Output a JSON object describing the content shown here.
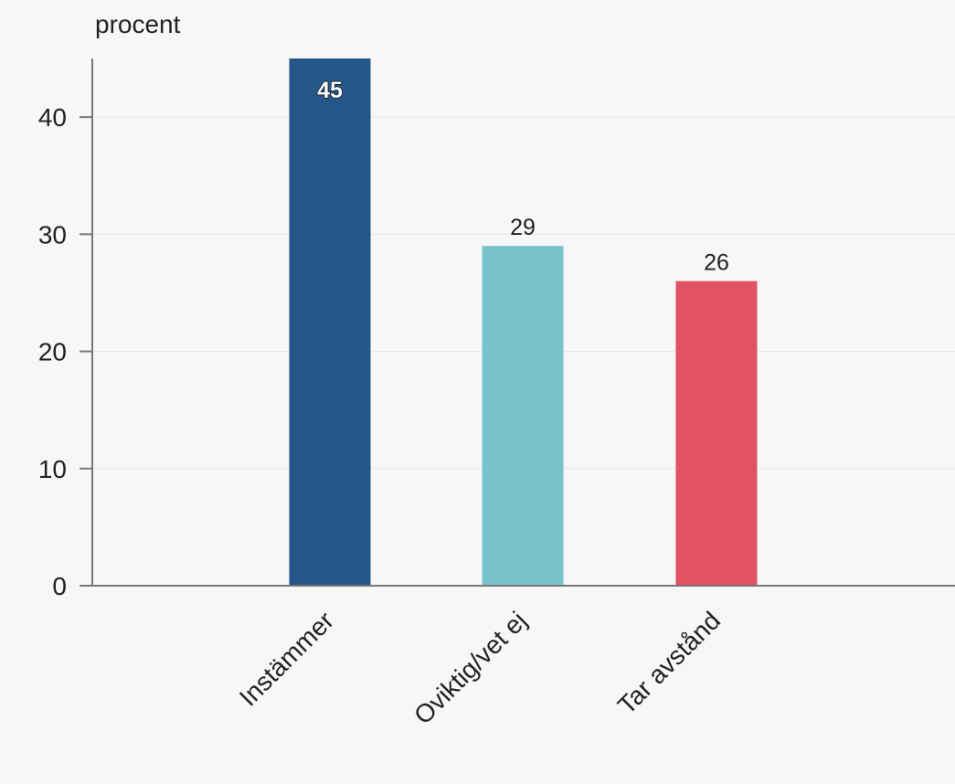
{
  "chart_data": {
    "type": "bar",
    "ylabel": "procent",
    "categories": [
      "Instämmer",
      "Oviktig/vet ej",
      "Tar avstånd"
    ],
    "values": [
      45,
      29,
      26
    ],
    "colors": [
      "#245787",
      "#78c3ca",
      "#e05264"
    ],
    "ylim": [
      0,
      45
    ],
    "yticks": [
      0,
      10,
      20,
      30,
      40
    ],
    "grid": true,
    "legend": "none"
  }
}
